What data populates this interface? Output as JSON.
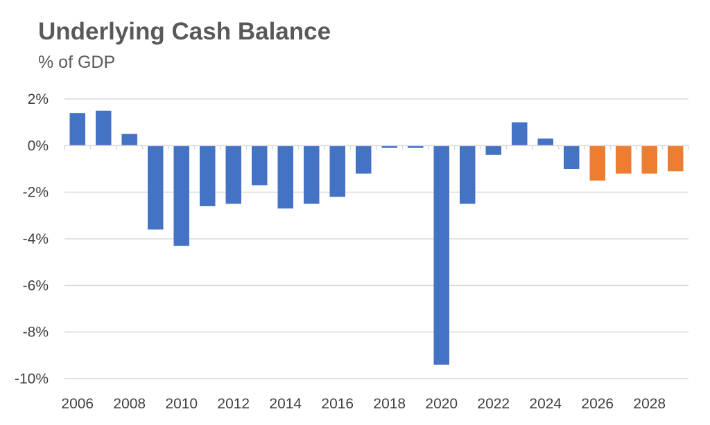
{
  "colors": {
    "actual": "#4472C4",
    "forecast": "#ED7D31",
    "gridline": "#D9D9D9",
    "text": "#595959"
  },
  "chart_data": {
    "type": "bar",
    "title": "Underlying Cash Balance",
    "subtitle": "% of GDP",
    "xlabel": "",
    "ylabel": "",
    "ylim": [
      -10,
      2
    ],
    "yticks": [
      2,
      0,
      -2,
      -4,
      -6,
      -8,
      -10
    ],
    "ytick_labels": [
      "2%",
      "0%",
      "-2%",
      "-4%",
      "-6%",
      "-8%",
      "-10%"
    ],
    "xtick_labels": [
      "2006",
      "2008",
      "2010",
      "2012",
      "2014",
      "2016",
      "2018",
      "2020",
      "2022",
      "2024",
      "2026",
      "2028"
    ],
    "grid": true,
    "legend": "none",
    "categories": [
      "2006",
      "2007",
      "2008",
      "2009",
      "2010",
      "2011",
      "2012",
      "2013",
      "2014",
      "2015",
      "2016",
      "2017",
      "2018",
      "2019",
      "2020",
      "2021",
      "2022",
      "2023",
      "2024",
      "2025",
      "2026",
      "2027",
      "2028",
      "2029"
    ],
    "values": [
      1.4,
      1.5,
      0.5,
      -3.6,
      -4.3,
      -2.6,
      -2.5,
      -1.7,
      -2.7,
      -2.5,
      -2.2,
      -1.2,
      -0.1,
      -0.1,
      -9.4,
      -2.5,
      -0.4,
      1.0,
      0.3,
      -1.0,
      -1.5,
      -1.2,
      -1.2,
      -1.1
    ],
    "forecast": [
      false,
      false,
      false,
      false,
      false,
      false,
      false,
      false,
      false,
      false,
      false,
      false,
      false,
      false,
      false,
      false,
      false,
      false,
      false,
      false,
      true,
      true,
      true,
      true
    ]
  }
}
